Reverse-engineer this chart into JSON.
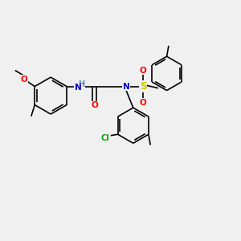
{
  "background_color": "#f0f0f0",
  "figsize": [
    3.0,
    3.0
  ],
  "dpi": 100,
  "bond_color": "#000000",
  "atom_colors": {
    "O": "#ff0000",
    "N": "#0000cc",
    "S": "#cccc00",
    "Cl": "#00aa00",
    "H_label": "#5588aa",
    "C": "#000000"
  },
  "lw": 1.2,
  "fs": 7.5
}
